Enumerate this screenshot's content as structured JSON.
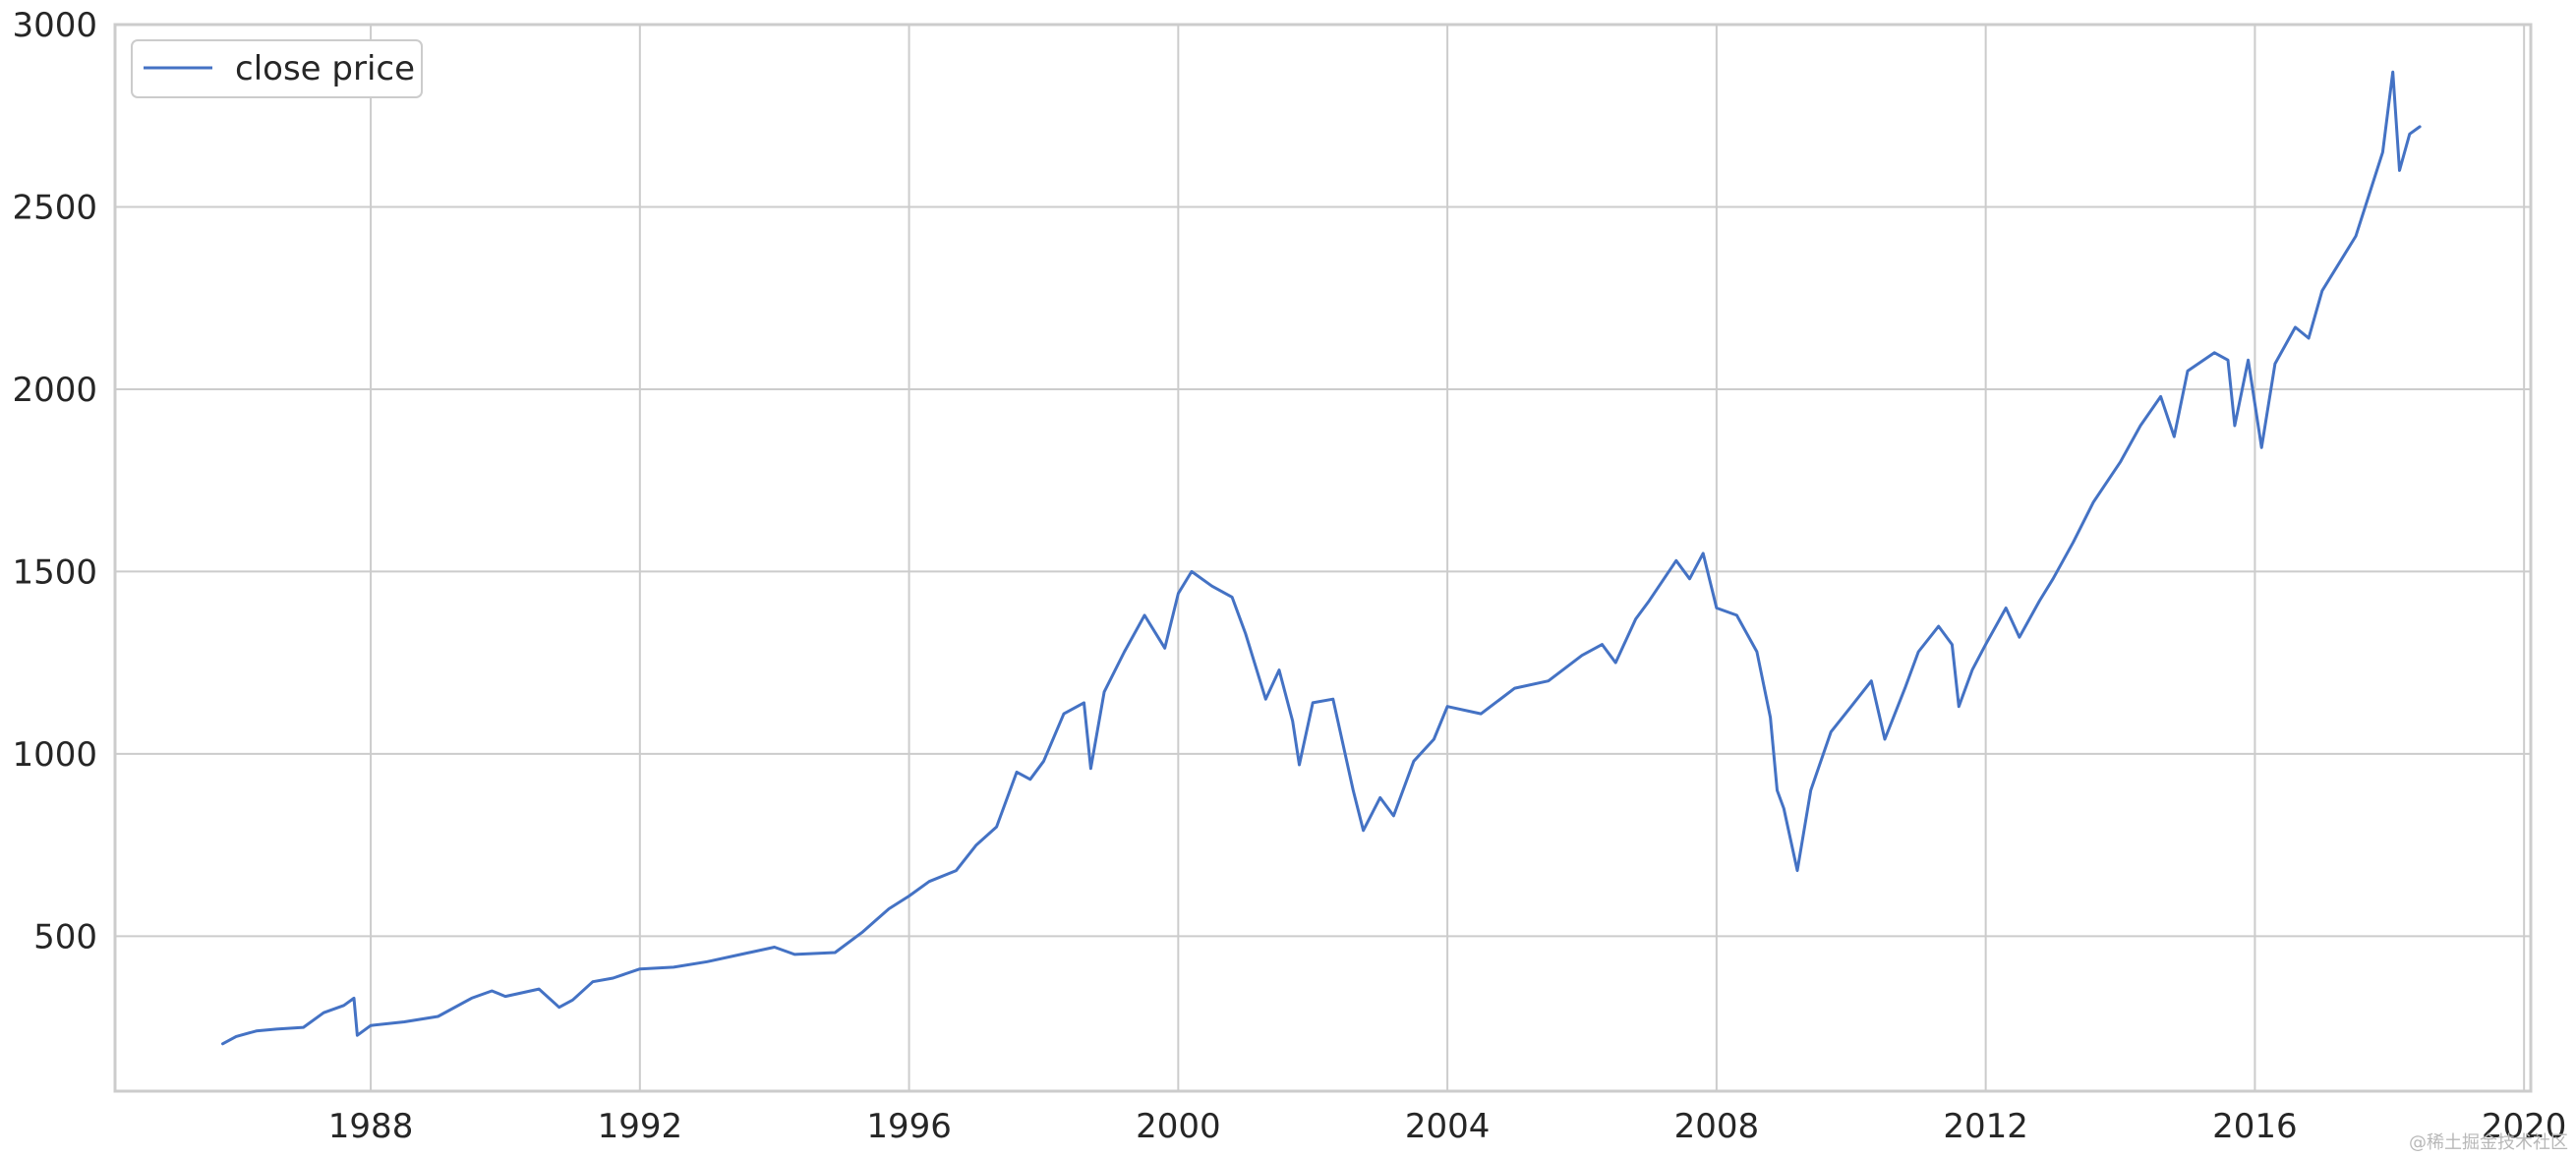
{
  "chart_data": {
    "type": "line",
    "title": "",
    "xlabel": "",
    "ylabel": "",
    "xlim": [
      1984.2,
      2020.1
    ],
    "ylim": [
      75,
      3000
    ],
    "x_ticks": [
      1988,
      1992,
      1996,
      2000,
      2004,
      2008,
      2012,
      2016,
      2020
    ],
    "y_ticks": [
      500,
      1000,
      1500,
      2000,
      2500,
      3000
    ],
    "grid": true,
    "legend": {
      "placement": "upper-left",
      "entries": [
        "close price"
      ]
    },
    "series": [
      {
        "name": "close price",
        "color": "#4472c4",
        "points": [
          [
            1985.8,
            205
          ],
          [
            1986.0,
            225
          ],
          [
            1986.3,
            240
          ],
          [
            1986.6,
            245
          ],
          [
            1987.0,
            250
          ],
          [
            1987.3,
            290
          ],
          [
            1987.6,
            310
          ],
          [
            1987.75,
            330
          ],
          [
            1987.8,
            228
          ],
          [
            1988.0,
            255
          ],
          [
            1988.5,
            265
          ],
          [
            1989.0,
            280
          ],
          [
            1989.5,
            330
          ],
          [
            1989.8,
            350
          ],
          [
            1990.0,
            335
          ],
          [
            1990.5,
            355
          ],
          [
            1990.8,
            305
          ],
          [
            1991.0,
            325
          ],
          [
            1991.3,
            375
          ],
          [
            1991.6,
            385
          ],
          [
            1992.0,
            410
          ],
          [
            1992.5,
            415
          ],
          [
            1993.0,
            430
          ],
          [
            1993.5,
            450
          ],
          [
            1994.0,
            470
          ],
          [
            1994.3,
            450
          ],
          [
            1994.9,
            455
          ],
          [
            1995.3,
            510
          ],
          [
            1995.7,
            575
          ],
          [
            1996.0,
            610
          ],
          [
            1996.3,
            650
          ],
          [
            1996.7,
            680
          ],
          [
            1997.0,
            750
          ],
          [
            1997.3,
            800
          ],
          [
            1997.6,
            950
          ],
          [
            1997.8,
            930
          ],
          [
            1998.0,
            980
          ],
          [
            1998.3,
            1110
          ],
          [
            1998.6,
            1140
          ],
          [
            1998.7,
            960
          ],
          [
            1998.9,
            1170
          ],
          [
            1999.2,
            1280
          ],
          [
            1999.5,
            1380
          ],
          [
            1999.8,
            1290
          ],
          [
            2000.0,
            1440
          ],
          [
            2000.2,
            1500
          ],
          [
            2000.5,
            1460
          ],
          [
            2000.8,
            1430
          ],
          [
            2001.0,
            1330
          ],
          [
            2001.3,
            1150
          ],
          [
            2001.5,
            1230
          ],
          [
            2001.7,
            1090
          ],
          [
            2001.8,
            970
          ],
          [
            2002.0,
            1140
          ],
          [
            2002.3,
            1150
          ],
          [
            2002.6,
            900
          ],
          [
            2002.75,
            790
          ],
          [
            2003.0,
            880
          ],
          [
            2003.2,
            830
          ],
          [
            2003.5,
            980
          ],
          [
            2003.8,
            1040
          ],
          [
            2004.0,
            1130
          ],
          [
            2004.5,
            1110
          ],
          [
            2005.0,
            1180
          ],
          [
            2005.5,
            1200
          ],
          [
            2006.0,
            1270
          ],
          [
            2006.3,
            1300
          ],
          [
            2006.5,
            1250
          ],
          [
            2006.8,
            1370
          ],
          [
            2007.0,
            1420
          ],
          [
            2007.4,
            1530
          ],
          [
            2007.6,
            1480
          ],
          [
            2007.8,
            1550
          ],
          [
            2008.0,
            1400
          ],
          [
            2008.3,
            1380
          ],
          [
            2008.6,
            1280
          ],
          [
            2008.8,
            1100
          ],
          [
            2008.9,
            900
          ],
          [
            2009.0,
            850
          ],
          [
            2009.2,
            680
          ],
          [
            2009.4,
            900
          ],
          [
            2009.7,
            1060
          ],
          [
            2010.0,
            1130
          ],
          [
            2010.3,
            1200
          ],
          [
            2010.5,
            1040
          ],
          [
            2010.8,
            1180
          ],
          [
            2011.0,
            1280
          ],
          [
            2011.3,
            1350
          ],
          [
            2011.5,
            1300
          ],
          [
            2011.6,
            1130
          ],
          [
            2011.8,
            1230
          ],
          [
            2012.0,
            1300
          ],
          [
            2012.3,
            1400
          ],
          [
            2012.5,
            1320
          ],
          [
            2012.8,
            1420
          ],
          [
            2013.0,
            1480
          ],
          [
            2013.3,
            1580
          ],
          [
            2013.6,
            1690
          ],
          [
            2014.0,
            1800
          ],
          [
            2014.3,
            1900
          ],
          [
            2014.6,
            1980
          ],
          [
            2014.8,
            1870
          ],
          [
            2015.0,
            2050
          ],
          [
            2015.4,
            2100
          ],
          [
            2015.6,
            2080
          ],
          [
            2015.7,
            1900
          ],
          [
            2015.9,
            2080
          ],
          [
            2016.1,
            1840
          ],
          [
            2016.3,
            2070
          ],
          [
            2016.6,
            2170
          ],
          [
            2016.8,
            2140
          ],
          [
            2017.0,
            2270
          ],
          [
            2017.5,
            2420
          ],
          [
            2017.9,
            2650
          ],
          [
            2018.05,
            2870
          ],
          [
            2018.15,
            2600
          ],
          [
            2018.3,
            2700
          ],
          [
            2018.45,
            2720
          ]
        ]
      }
    ]
  },
  "watermark": "@稀土掘金技术社区"
}
